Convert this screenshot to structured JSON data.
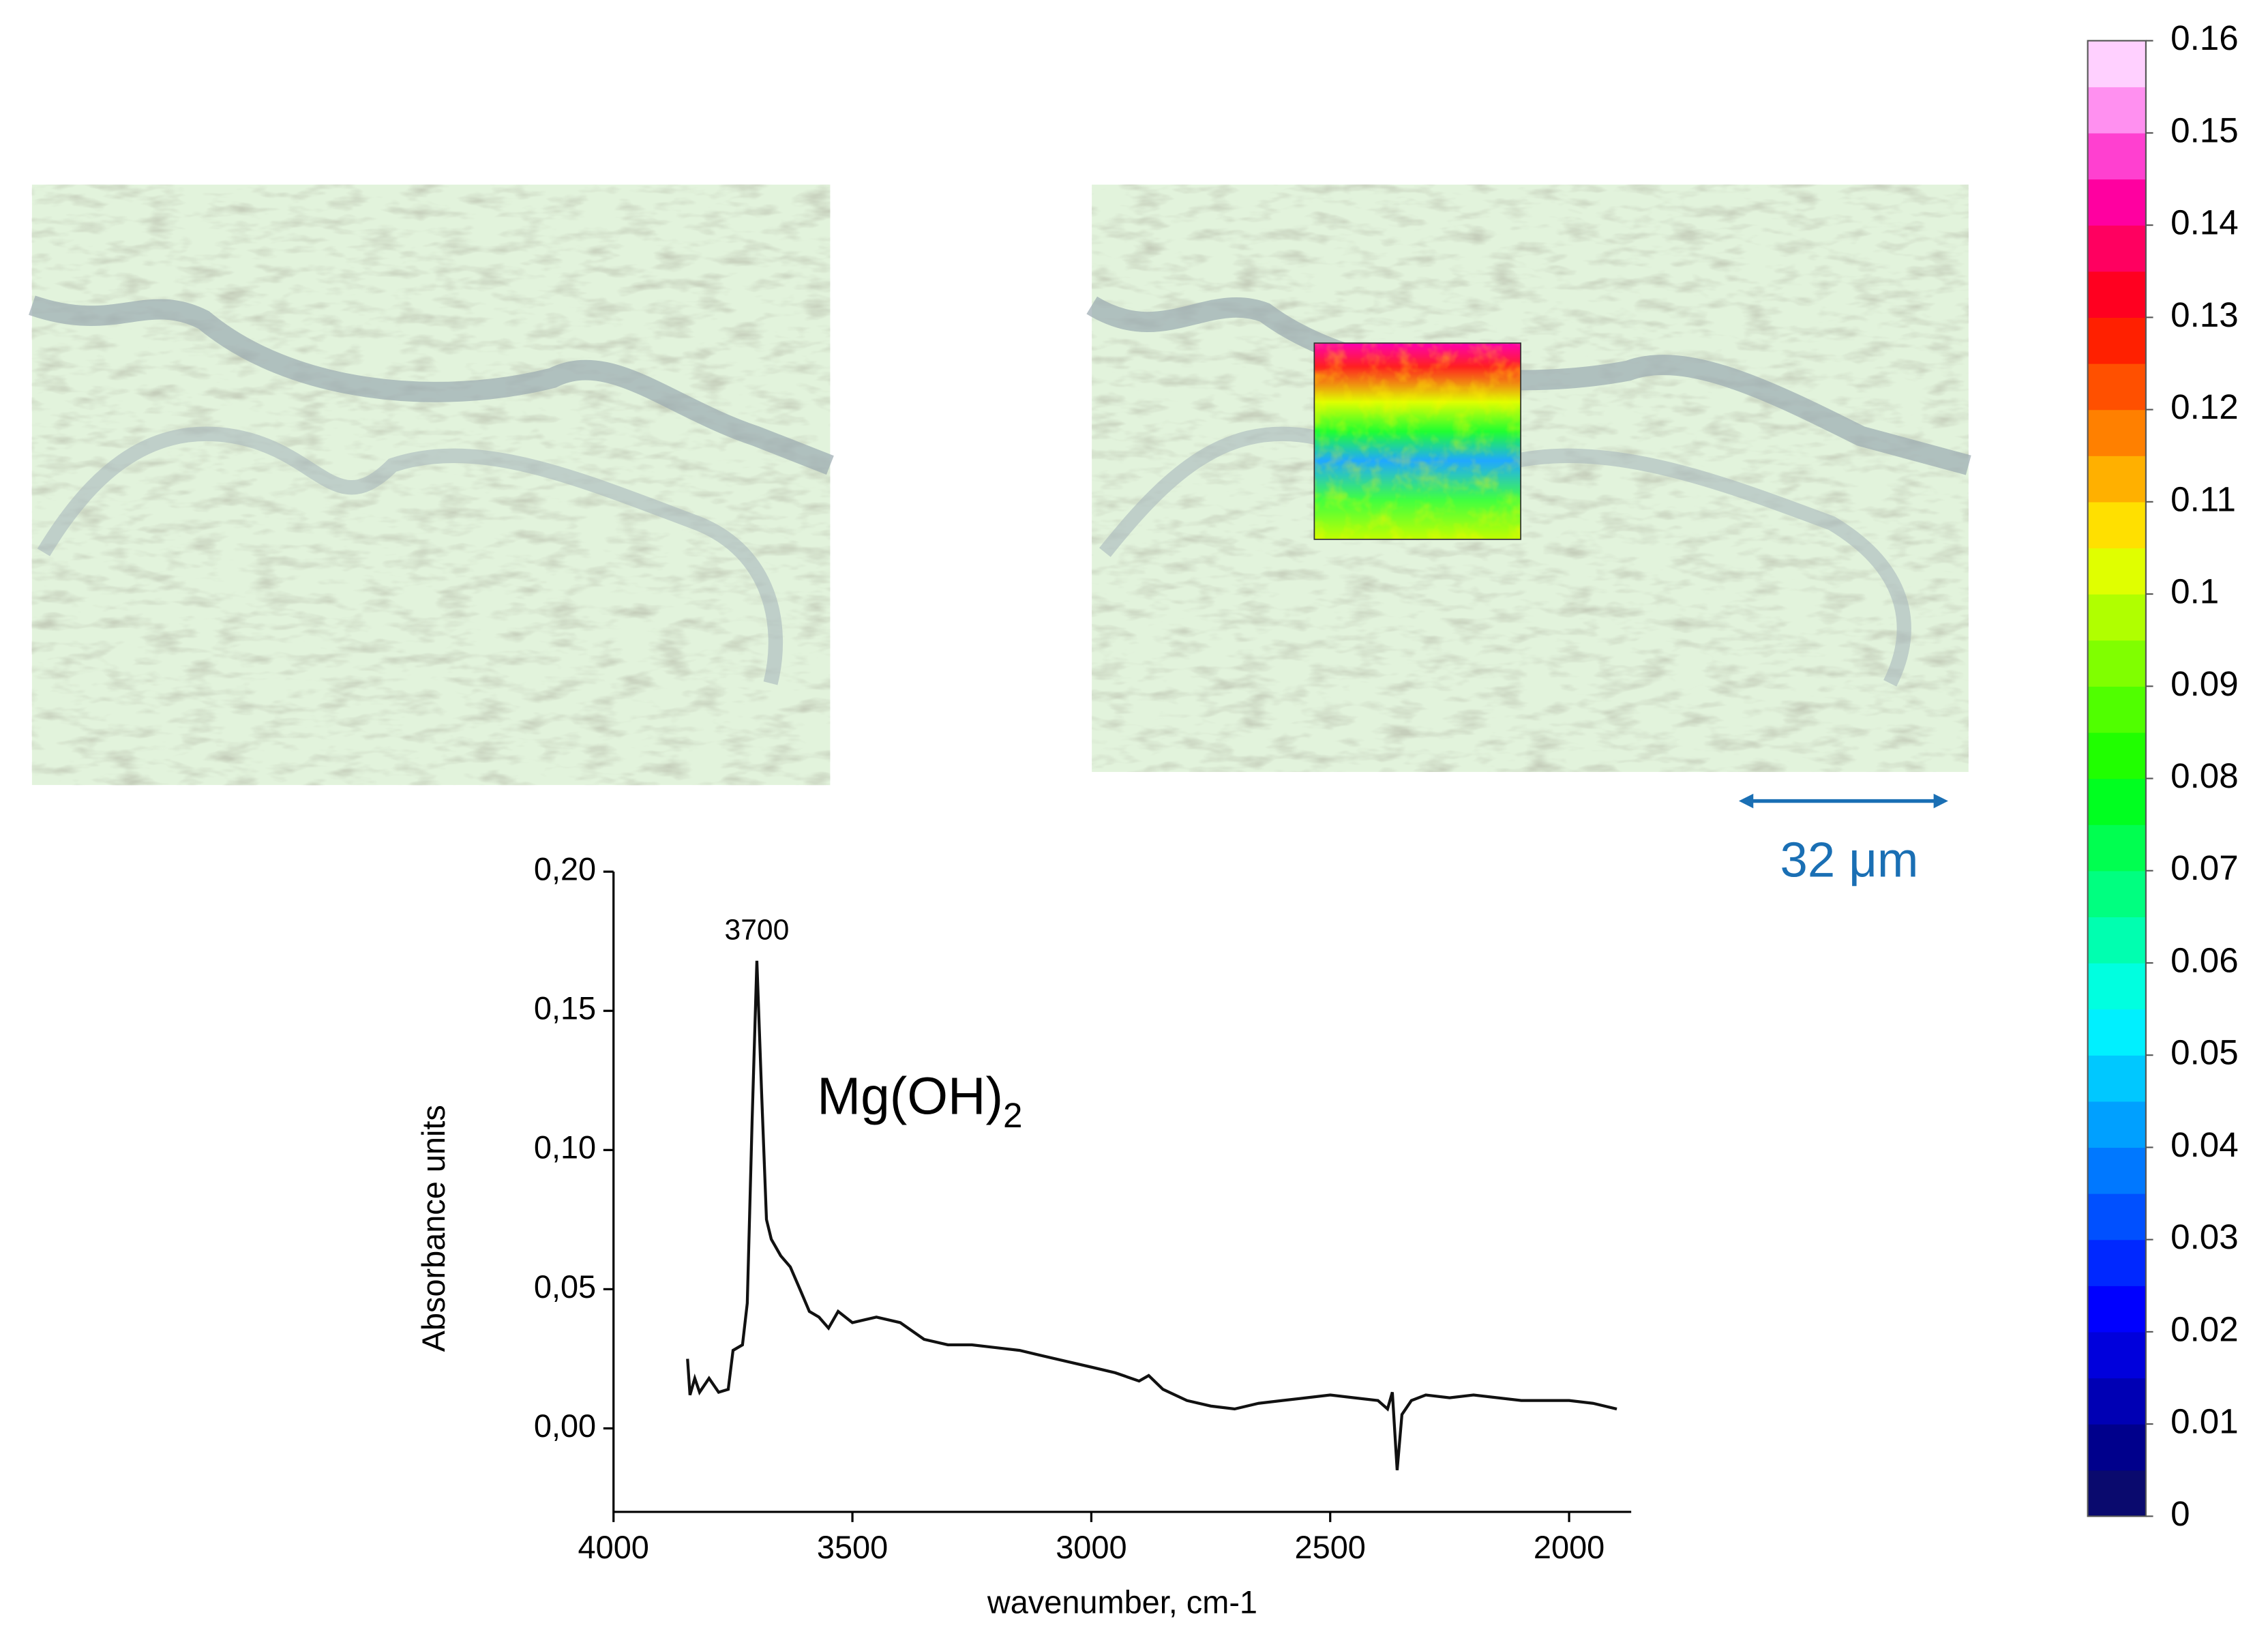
{
  "chart_data": {
    "type": "line",
    "color": "#111111",
    "xlabel": "wavenumber, cm-1",
    "ylabel": "Absorbance units",
    "x": [
      3845,
      3840,
      3830,
      3820,
      3800,
      3780,
      3760,
      3750,
      3730,
      3720,
      3710,
      3700,
      3690,
      3680,
      3670,
      3650,
      3630,
      3610,
      3590,
      3570,
      3550,
      3530,
      3500,
      3450,
      3400,
      3350,
      3300,
      3250,
      3200,
      3150,
      3100,
      3050,
      3000,
      2950,
      2900,
      2880,
      2850,
      2800,
      2750,
      2700,
      2650,
      2600,
      2550,
      2500,
      2450,
      2400,
      2380,
      2370,
      2360,
      2350,
      2330,
      2300,
      2250,
      2200,
      2100,
      2000,
      1950,
      1900
    ],
    "values": [
      0.025,
      0.012,
      0.018,
      0.013,
      0.018,
      0.013,
      0.014,
      0.028,
      0.03,
      0.045,
      0.11,
      0.168,
      0.12,
      0.075,
      0.068,
      0.062,
      0.058,
      0.05,
      0.042,
      0.04,
      0.036,
      0.042,
      0.038,
      0.04,
      0.038,
      0.032,
      0.03,
      0.03,
      0.029,
      0.028,
      0.026,
      0.024,
      0.022,
      0.02,
      0.017,
      0.019,
      0.014,
      0.01,
      0.008,
      0.007,
      0.009,
      0.01,
      0.011,
      0.012,
      0.011,
      0.01,
      0.007,
      0.013,
      -0.015,
      0.005,
      0.01,
      0.012,
      0.011,
      0.012,
      0.01,
      0.01,
      0.009,
      0.007
    ],
    "xlim": [
      4000,
      1870
    ],
    "xticks": [
      4000,
      3500,
      3000,
      2500,
      2000
    ],
    "ylim": [
      -0.03,
      0.2
    ],
    "yticks": [
      {
        "value": 0,
        "label": "0,00"
      },
      {
        "value": 0.05,
        "label": "0,05"
      },
      {
        "value": 0.1,
        "label": "0,10"
      },
      {
        "value": 0.15,
        "label": "0,15"
      },
      {
        "value": 0.2,
        "label": "0,20"
      }
    ],
    "annotations": [
      {
        "text": "3700",
        "x": 3700,
        "y": 0.168
      }
    ],
    "compound": {
      "text": "Mg(OH)",
      "subscript": "2"
    }
  },
  "scale_bar": "32 μm",
  "colorbar": {
    "min": 0,
    "max": 0.16,
    "ticks": [
      0,
      0.01,
      0.02,
      0.03,
      0.04,
      0.05,
      0.06,
      0.07,
      0.08,
      0.09,
      0.1,
      0.11,
      0.12,
      0.13,
      0.14,
      0.15,
      0.16
    ],
    "colors": [
      "#0a0a6e",
      "#00008c",
      "#0000b4",
      "#0000dc",
      "#0000ff",
      "#0028ff",
      "#0050ff",
      "#0078ff",
      "#00a0ff",
      "#00c8ff",
      "#00f0ff",
      "#00ffe0",
      "#00ffb0",
      "#00ff80",
      "#00ff50",
      "#00ff20",
      "#20ff00",
      "#50ff00",
      "#80ff00",
      "#b0ff00",
      "#e0ff00",
      "#ffe000",
      "#ffb000",
      "#ff8000",
      "#ff5000",
      "#ff2000",
      "#ff0020",
      "#ff0060",
      "#ff00a0",
      "#ff40d0",
      "#ff90f0",
      "#ffd0ff"
    ]
  }
}
